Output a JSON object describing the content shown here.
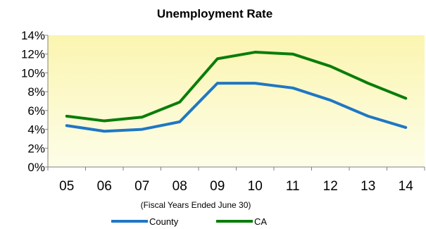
{
  "chart_data": {
    "type": "line",
    "title": "Unemployment Rate",
    "xlabel": "(Fiscal Years Ended June 30)",
    "ylabel": "",
    "categories": [
      "05",
      "06",
      "07",
      "08",
      "09",
      "10",
      "11",
      "12",
      "13",
      "14"
    ],
    "y_ticks": [
      "0%",
      "2%",
      "4%",
      "6%",
      "8%",
      "10%",
      "12%",
      "14%"
    ],
    "ylim": [
      0,
      14
    ],
    "grid": false,
    "legend_position": "bottom",
    "series": [
      {
        "name": "County",
        "color": "#1f77c4",
        "values": [
          4.4,
          3.8,
          4.0,
          4.8,
          8.9,
          8.9,
          8.4,
          7.1,
          5.4,
          4.2
        ]
      },
      {
        "name": "CA",
        "color": "#0a7d0a",
        "values": [
          5.4,
          4.9,
          5.3,
          6.9,
          11.5,
          12.2,
          12.0,
          10.7,
          8.9,
          7.3
        ]
      }
    ],
    "plot_background": [
      "#fdfde8",
      "#fbf5b0"
    ]
  }
}
